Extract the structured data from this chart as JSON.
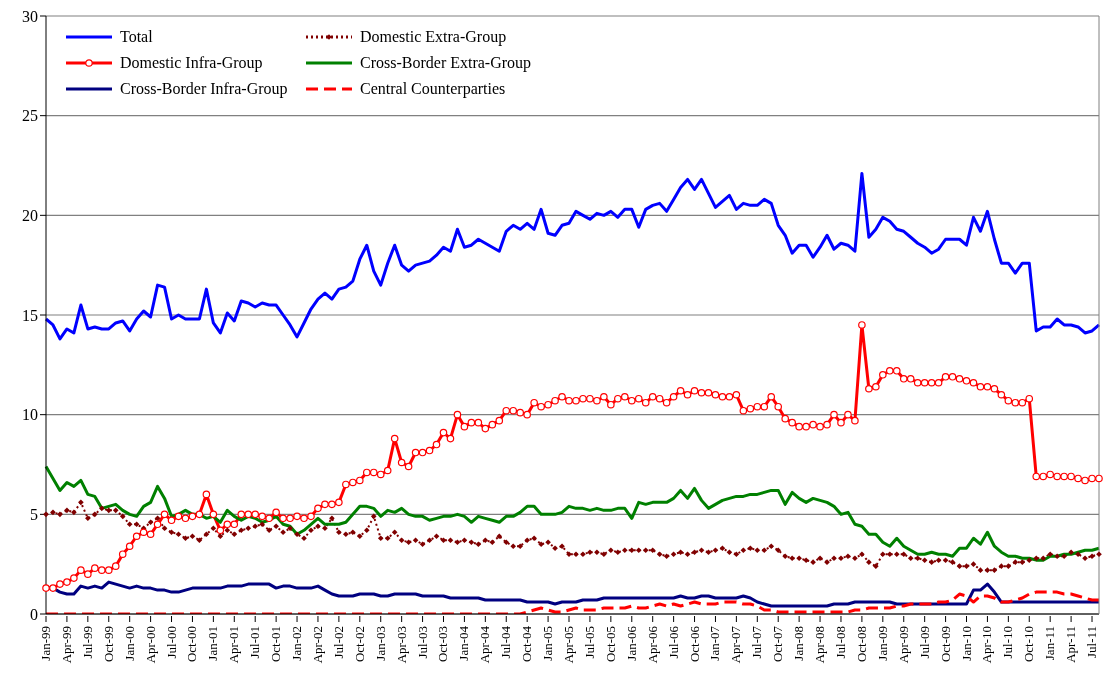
{
  "chart_data": {
    "type": "line",
    "categories": [
      "Jan-99",
      null,
      null,
      "Apr-99",
      null,
      null,
      "Jul-99",
      null,
      null,
      "Oct-99",
      null,
      null,
      "Jan-00",
      null,
      null,
      "Apr-00",
      null,
      null,
      "Jul-00",
      null,
      null,
      "Oct-00",
      null,
      null,
      "Jan-01",
      null,
      null,
      "Apr-01",
      null,
      null,
      "Jul-01",
      null,
      null,
      "Oct-01",
      null,
      null,
      "Jan-02",
      null,
      null,
      "Apr-02",
      null,
      null,
      "Jul-02",
      null,
      null,
      "Oct-02",
      null,
      null,
      "Jan-03",
      null,
      null,
      "Apr-03",
      null,
      null,
      "Jul-03",
      null,
      null,
      "Oct-03",
      null,
      null,
      "Jan-04",
      null,
      null,
      "Apr-04",
      null,
      null,
      "Jul-04",
      null,
      null,
      "Oct-04",
      null,
      null,
      "Jan-05",
      null,
      null,
      "Apr-05",
      null,
      null,
      "Jul-05",
      null,
      null,
      "Oct-05",
      null,
      null,
      "Jan-06",
      null,
      null,
      "Apr-06",
      null,
      null,
      "Jul-06",
      null,
      null,
      "Oct-06",
      null,
      null,
      "Jan-07",
      null,
      null,
      "Apr-07",
      null,
      null,
      "Jul-07",
      null,
      null,
      "Oct-07",
      null,
      null,
      "Jan-08",
      null,
      null,
      "Apr-08",
      null,
      null,
      "Jul-08",
      null,
      null,
      "Oct-08",
      null,
      null,
      "Jan-09",
      null,
      null,
      "Apr-09",
      null,
      null,
      "Jul-09",
      null,
      null,
      "Oct-09",
      null,
      null,
      "Jan-10",
      null,
      null,
      "Apr-10",
      null,
      null,
      "Jul-10",
      null,
      null,
      "Oct-10",
      null,
      null,
      "Jan-11",
      null,
      null,
      "Apr-11",
      null,
      null,
      "Jul-11",
      null
    ],
    "series": [
      {
        "name": "Total",
        "color": "#0000ff",
        "marker": "none",
        "line_style": "solid",
        "values": [
          14.8,
          14.5,
          13.8,
          14.3,
          14.1,
          15.5,
          14.3,
          14.4,
          14.3,
          14.3,
          14.6,
          14.7,
          14.2,
          14.8,
          15.2,
          14.9,
          16.5,
          16.4,
          14.8,
          15.0,
          14.8,
          14.8,
          14.8,
          16.3,
          14.6,
          14.1,
          15.1,
          14.7,
          15.7,
          15.6,
          15.4,
          15.6,
          15.5,
          15.5,
          15.0,
          14.5,
          13.9,
          14.6,
          15.3,
          15.8,
          16.1,
          15.8,
          16.3,
          16.4,
          16.7,
          17.8,
          18.5,
          17.2,
          16.5,
          17.6,
          18.5,
          17.5,
          17.2,
          17.5,
          17.6,
          17.7,
          18.0,
          18.4,
          18.2,
          19.3,
          18.4,
          18.5,
          18.8,
          18.6,
          18.4,
          18.2,
          19.2,
          19.5,
          19.3,
          19.6,
          19.3,
          20.3,
          19.1,
          19.0,
          19.5,
          19.6,
          20.2,
          20.0,
          19.8,
          20.1,
          20.0,
          20.2,
          19.9,
          20.3,
          20.3,
          19.4,
          20.3,
          20.5,
          20.6,
          20.2,
          20.8,
          21.4,
          21.8,
          21.3,
          21.8,
          21.1,
          20.4,
          20.7,
          21.0,
          20.3,
          20.6,
          20.5,
          20.5,
          20.8,
          20.6,
          19.5,
          19.0,
          18.1,
          18.5,
          18.5,
          17.9,
          18.4,
          19.0,
          18.3,
          18.6,
          18.5,
          18.2,
          22.1,
          18.9,
          19.3,
          19.9,
          19.7,
          19.3,
          19.2,
          18.9,
          18.6,
          18.4,
          18.1,
          18.3,
          18.8,
          18.8,
          18.8,
          18.5,
          19.9,
          19.2,
          20.2,
          18.8,
          17.6,
          17.6,
          17.1,
          17.6,
          17.6,
          14.2,
          14.4,
          14.4,
          14.8,
          14.5,
          14.5,
          14.4,
          14.1,
          14.2,
          14.5
        ]
      },
      {
        "name": "Domestic Extra-Group",
        "color": "#800000",
        "marker": "diamond",
        "line_style": "dotted",
        "values": [
          5.0,
          5.1,
          5.0,
          5.2,
          5.1,
          5.6,
          4.8,
          5.0,
          5.3,
          5.2,
          5.2,
          4.9,
          4.5,
          4.5,
          4.3,
          4.6,
          4.8,
          4.3,
          4.1,
          4.0,
          3.8,
          3.9,
          3.7,
          4.0,
          4.3,
          3.9,
          4.2,
          4.0,
          4.2,
          4.3,
          4.4,
          4.5,
          4.2,
          4.4,
          4.1,
          4.3,
          4.0,
          3.8,
          4.2,
          4.4,
          4.3,
          4.8,
          4.1,
          4.0,
          4.1,
          3.9,
          4.2,
          4.9,
          3.8,
          3.8,
          4.1,
          3.7,
          3.6,
          3.7,
          3.5,
          3.7,
          3.9,
          3.7,
          3.7,
          3.6,
          3.7,
          3.6,
          3.5,
          3.7,
          3.6,
          3.9,
          3.6,
          3.4,
          3.4,
          3.7,
          3.8,
          3.5,
          3.6,
          3.3,
          3.4,
          3.0,
          3.0,
          3.0,
          3.1,
          3.1,
          3.0,
          3.2,
          3.1,
          3.2,
          3.2,
          3.2,
          3.2,
          3.2,
          3.0,
          2.9,
          3.0,
          3.1,
          3.0,
          3.1,
          3.2,
          3.1,
          3.2,
          3.3,
          3.1,
          3.0,
          3.2,
          3.3,
          3.2,
          3.2,
          3.4,
          3.2,
          2.9,
          2.8,
          2.8,
          2.7,
          2.6,
          2.8,
          2.6,
          2.8,
          2.8,
          2.9,
          2.8,
          3.0,
          2.6,
          2.4,
          3.0,
          3.0,
          3.0,
          3.0,
          2.8,
          2.8,
          2.7,
          2.6,
          2.7,
          2.7,
          2.6,
          2.4,
          2.4,
          2.5,
          2.2,
          2.2,
          2.2,
          2.4,
          2.4,
          2.6,
          2.6,
          2.7,
          2.8,
          2.8,
          3.0,
          2.9,
          2.9,
          3.1,
          3.0,
          2.8,
          2.9,
          3.0
        ]
      },
      {
        "name": "Domestic Infra-Group",
        "color": "#ff0000",
        "marker": "circle",
        "line_style": "solid",
        "values": [
          1.3,
          1.3,
          1.5,
          1.6,
          1.8,
          2.2,
          2.0,
          2.3,
          2.2,
          2.2,
          2.4,
          3.0,
          3.4,
          3.9,
          4.1,
          4.0,
          4.5,
          5.0,
          4.7,
          4.9,
          4.8,
          4.9,
          5.0,
          6.0,
          5.0,
          4.2,
          4.5,
          4.5,
          5.0,
          5.0,
          5.0,
          4.9,
          4.8,
          5.1,
          4.8,
          4.8,
          4.9,
          4.8,
          4.9,
          5.3,
          5.5,
          5.5,
          5.6,
          6.5,
          6.6,
          6.7,
          7.1,
          7.1,
          7.0,
          7.2,
          8.8,
          7.6,
          7.4,
          8.1,
          8.1,
          8.2,
          8.5,
          9.1,
          8.8,
          10.0,
          9.4,
          9.6,
          9.6,
          9.3,
          9.5,
          9.7,
          10.2,
          10.2,
          10.1,
          10.0,
          10.6,
          10.4,
          10.5,
          10.7,
          10.9,
          10.7,
          10.7,
          10.8,
          10.8,
          10.7,
          10.9,
          10.5,
          10.8,
          10.9,
          10.7,
          10.8,
          10.6,
          10.9,
          10.8,
          10.6,
          10.9,
          11.2,
          11.0,
          11.2,
          11.1,
          11.1,
          11.0,
          10.9,
          10.9,
          11.0,
          10.2,
          10.3,
          10.4,
          10.4,
          10.9,
          10.4,
          9.8,
          9.6,
          9.4,
          9.4,
          9.5,
          9.4,
          9.5,
          10.0,
          9.6,
          10.0,
          9.7,
          14.5,
          11.3,
          11.4,
          12.0,
          12.2,
          12.2,
          11.8,
          11.8,
          11.6,
          11.6,
          11.6,
          11.6,
          11.9,
          11.9,
          11.8,
          11.7,
          11.6,
          11.4,
          11.4,
          11.3,
          11.0,
          10.7,
          10.6,
          10.6,
          10.8,
          6.9,
          6.9,
          7.0,
          6.9,
          6.9,
          6.9,
          6.8,
          6.7,
          6.8,
          6.8
        ]
      },
      {
        "name": "Cross-Border Extra-Group",
        "color": "#008000",
        "marker": "none",
        "line_style": "solid",
        "values": [
          7.4,
          6.8,
          6.2,
          6.6,
          6.4,
          6.7,
          6.0,
          5.9,
          5.3,
          5.4,
          5.5,
          5.2,
          5.0,
          4.9,
          5.4,
          5.6,
          6.4,
          5.8,
          4.9,
          5.0,
          5.2,
          5.0,
          5.0,
          4.8,
          4.9,
          4.6,
          5.2,
          4.9,
          4.7,
          4.9,
          4.8,
          4.6,
          4.7,
          4.9,
          4.5,
          4.4,
          4.0,
          4.2,
          4.5,
          4.8,
          4.5,
          4.5,
          4.5,
          4.6,
          5.0,
          5.4,
          5.4,
          5.3,
          4.9,
          5.2,
          5.1,
          5.3,
          5.0,
          4.9,
          4.9,
          4.7,
          4.8,
          4.9,
          4.9,
          5.0,
          4.9,
          4.6,
          4.9,
          4.8,
          4.7,
          4.6,
          4.9,
          4.9,
          5.1,
          5.4,
          5.4,
          5.0,
          5.0,
          5.0,
          5.1,
          5.4,
          5.3,
          5.3,
          5.2,
          5.3,
          5.2,
          5.2,
          5.3,
          5.3,
          4.8,
          5.6,
          5.5,
          5.6,
          5.6,
          5.6,
          5.8,
          6.2,
          5.8,
          6.3,
          5.7,
          5.3,
          5.5,
          5.7,
          5.8,
          5.9,
          5.9,
          6.0,
          6.0,
          6.1,
          6.2,
          6.2,
          5.5,
          6.1,
          5.8,
          5.6,
          5.8,
          5.7,
          5.6,
          5.4,
          5.0,
          5.1,
          4.5,
          4.4,
          4.0,
          4.0,
          3.6,
          3.4,
          3.8,
          3.4,
          3.2,
          3.0,
          3.0,
          3.1,
          3.0,
          3.0,
          2.9,
          3.3,
          3.3,
          3.8,
          3.5,
          4.1,
          3.4,
          3.1,
          2.9,
          2.9,
          2.8,
          2.8,
          2.7,
          2.7,
          2.9,
          2.9,
          3.0,
          3.0,
          3.1,
          3.2,
          3.2,
          3.3
        ]
      },
      {
        "name": "Cross-Border Infra-Group",
        "color": "#000080",
        "marker": "none",
        "line_style": "solid",
        "values": [
          1.3,
          1.3,
          1.1,
          1.0,
          1.0,
          1.4,
          1.3,
          1.4,
          1.3,
          1.6,
          1.5,
          1.4,
          1.3,
          1.4,
          1.3,
          1.3,
          1.2,
          1.2,
          1.1,
          1.1,
          1.2,
          1.3,
          1.3,
          1.3,
          1.3,
          1.3,
          1.4,
          1.4,
          1.4,
          1.5,
          1.5,
          1.5,
          1.5,
          1.3,
          1.4,
          1.4,
          1.3,
          1.3,
          1.3,
          1.4,
          1.2,
          1.0,
          0.9,
          0.9,
          0.9,
          1.0,
          1.0,
          1.0,
          0.9,
          0.9,
          1.0,
          1.0,
          1.0,
          1.0,
          0.9,
          0.9,
          0.9,
          0.9,
          0.8,
          0.8,
          0.8,
          0.8,
          0.8,
          0.7,
          0.7,
          0.7,
          0.7,
          0.7,
          0.7,
          0.6,
          0.6,
          0.6,
          0.6,
          0.5,
          0.6,
          0.6,
          0.6,
          0.7,
          0.7,
          0.7,
          0.8,
          0.8,
          0.8,
          0.8,
          0.8,
          0.8,
          0.8,
          0.8,
          0.8,
          0.8,
          0.8,
          0.9,
          0.8,
          0.8,
          0.9,
          0.9,
          0.8,
          0.8,
          0.8,
          0.8,
          0.9,
          0.8,
          0.6,
          0.5,
          0.4,
          0.4,
          0.4,
          0.4,
          0.4,
          0.4,
          0.4,
          0.4,
          0.4,
          0.5,
          0.5,
          0.5,
          0.6,
          0.6,
          0.6,
          0.6,
          0.6,
          0.6,
          0.5,
          0.5,
          0.5,
          0.5,
          0.5,
          0.5,
          0.5,
          0.5,
          0.5,
          0.5,
          0.5,
          1.2,
          1.2,
          1.5,
          1.1,
          0.6,
          0.6,
          0.6,
          0.6,
          0.6,
          0.6,
          0.6,
          0.6,
          0.6,
          0.6,
          0.6,
          0.6,
          0.6,
          0.6,
          0.6
        ]
      },
      {
        "name": "Central Counterparties",
        "color": "#ff0000",
        "marker": "none",
        "line_style": "dashed",
        "values": [
          0,
          0,
          0,
          0,
          0,
          0,
          0,
          0,
          0,
          0,
          0,
          0,
          0,
          0,
          0,
          0,
          0,
          0,
          0,
          0,
          0,
          0,
          0,
          0,
          0,
          0,
          0,
          0,
          0,
          0,
          0,
          0,
          0,
          0,
          0,
          0,
          0,
          0,
          0,
          0,
          0,
          0,
          0,
          0,
          0,
          0,
          0,
          0,
          0,
          0,
          0,
          0,
          0,
          0,
          0,
          0,
          0,
          0,
          0,
          0,
          0,
          0,
          0,
          0,
          0,
          0,
          0,
          0,
          0,
          0.1,
          0.2,
          0.3,
          0.2,
          0.1,
          0.1,
          0.2,
          0.3,
          0.2,
          0.2,
          0.2,
          0.3,
          0.3,
          0.3,
          0.3,
          0.4,
          0.3,
          0.3,
          0.4,
          0.5,
          0.4,
          0.5,
          0.4,
          0.5,
          0.6,
          0.5,
          0.5,
          0.5,
          0.6,
          0.6,
          0.6,
          0.5,
          0.5,
          0.4,
          0.2,
          0.2,
          0.1,
          0.1,
          0.1,
          0.1,
          0.1,
          0.1,
          0.1,
          0.1,
          0.1,
          0.1,
          0.1,
          0.2,
          0.2,
          0.3,
          0.3,
          0.3,
          0.3,
          0.4,
          0.4,
          0.5,
          0.5,
          0.5,
          0.5,
          0.6,
          0.6,
          0.7,
          1.0,
          0.9,
          0.6,
          0.9,
          0.9,
          0.8,
          0.6,
          0.6,
          0.7,
          0.8,
          1.0,
          1.1,
          1.1,
          1.1,
          1.1,
          1.0,
          1.0,
          0.9,
          0.8,
          0.7,
          0.7
        ]
      }
    ],
    "ylim": [
      0,
      30
    ],
    "yticks": [
      0,
      5,
      10,
      15,
      20,
      25,
      30
    ],
    "grid": "y",
    "legend": "top"
  }
}
